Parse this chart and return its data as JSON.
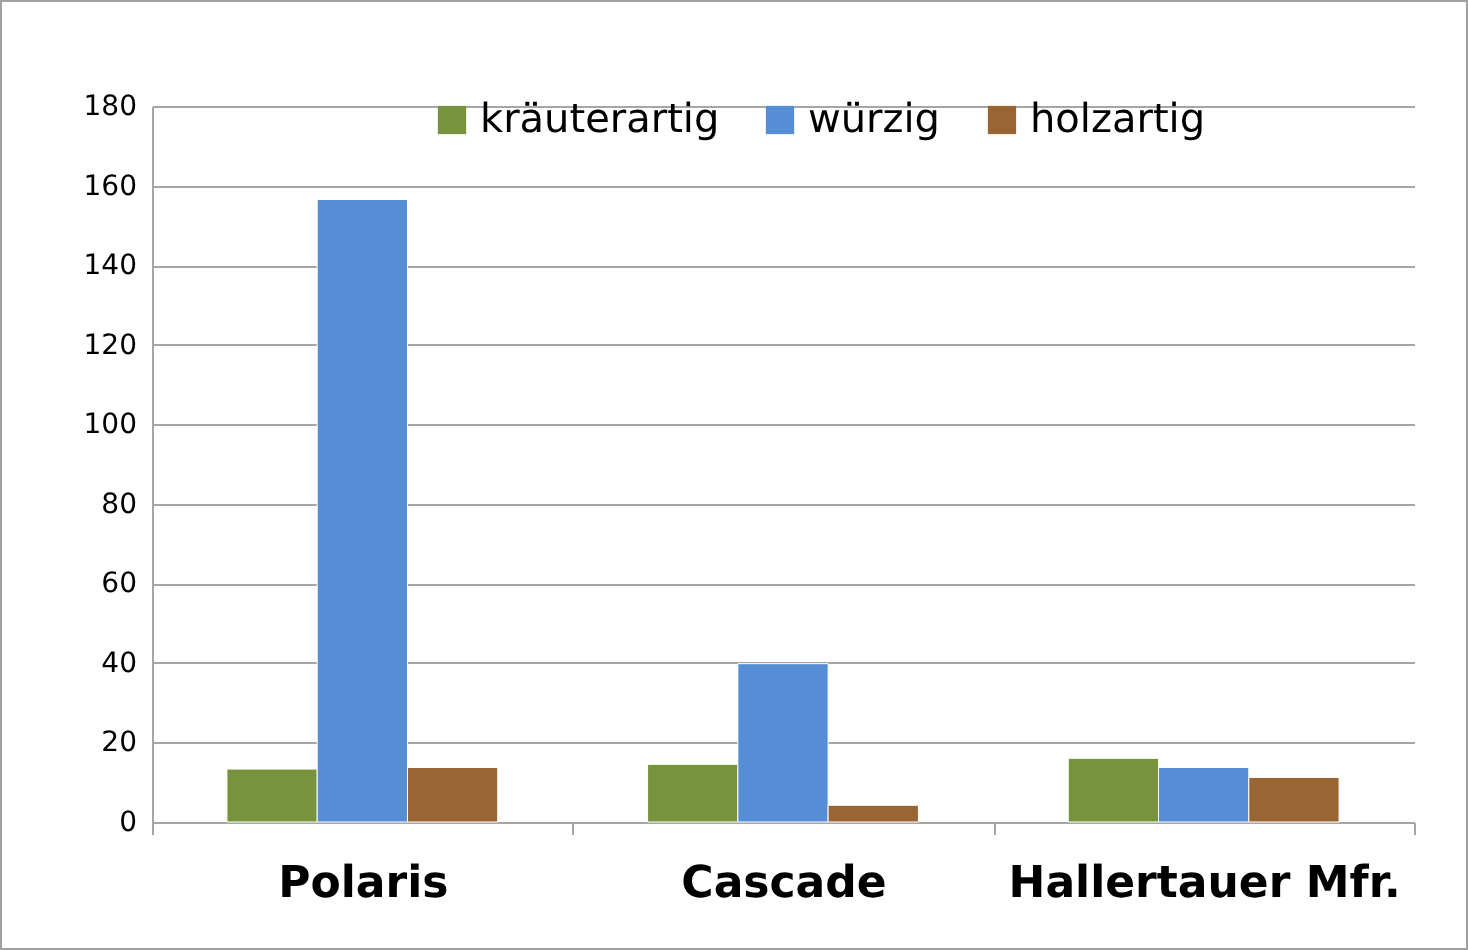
{
  "chart_data": {
    "type": "bar",
    "categories": [
      "Polaris",
      "Cascade",
      "Hallertauer Mfr."
    ],
    "series": [
      {
        "name": "kräuterartig",
        "color": "#77933c",
        "values": [
          13.3,
          14.5,
          16
        ]
      },
      {
        "name": "würzig",
        "color": "#558ed5",
        "values": [
          156.5,
          39.8,
          13.7
        ]
      },
      {
        "name": "holzartig",
        "color": "#996633",
        "values": [
          13.7,
          4.2,
          11.2
        ]
      }
    ],
    "ylim": [
      0,
      180
    ],
    "yticks": [
      0,
      20,
      40,
      60,
      80,
      100,
      120,
      140,
      160,
      180
    ],
    "grid": "y",
    "legend": "top"
  }
}
